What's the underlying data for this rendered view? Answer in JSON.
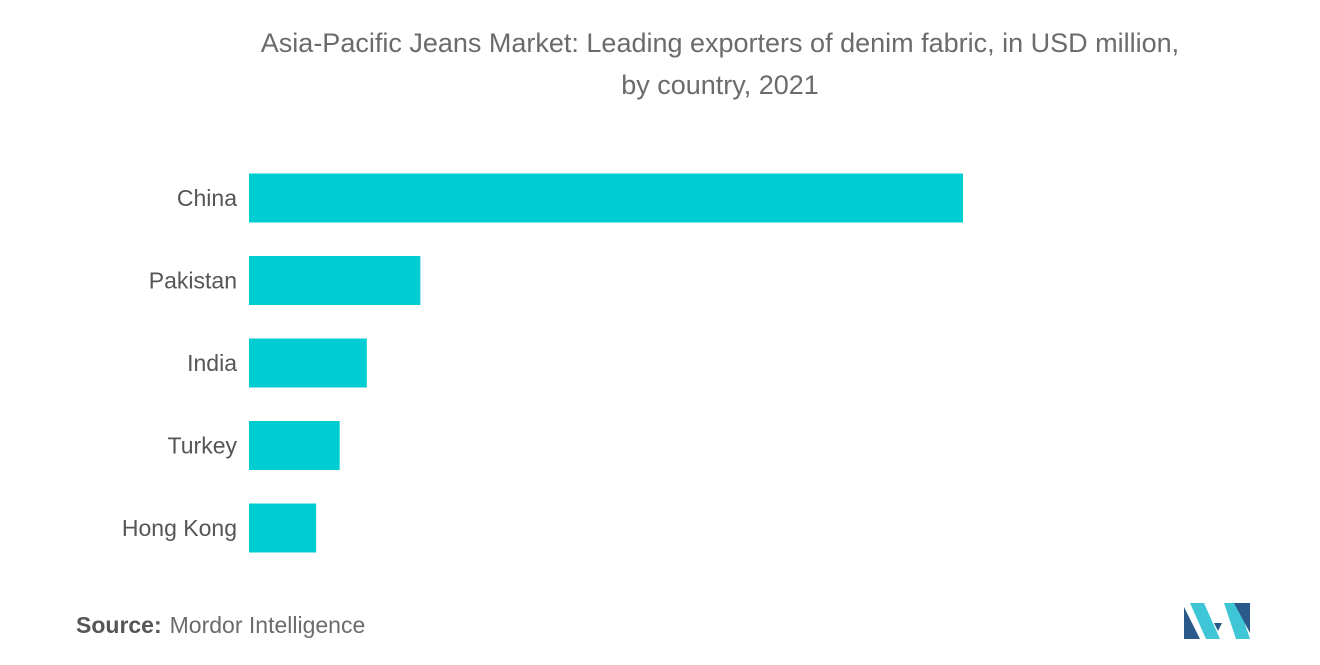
{
  "chart_data": {
    "type": "bar",
    "orientation": "horizontal",
    "title": "Asia-Pacific Jeans Market: Leading exporters of denim fabric, in USD million, by country, 2021",
    "categories": [
      "China",
      "Pakistan",
      "India",
      "Turkey",
      "Hong Kong"
    ],
    "values": [
      100,
      24,
      16.5,
      12.7,
      9.4
    ],
    "xlim": [
      0,
      100
    ],
    "grid": false,
    "legend": "none",
    "bar_color": "#00cdd1"
  },
  "source": {
    "label": "Source:",
    "text": "Mordor Intelligence"
  },
  "colors": {
    "bar": "#00cdd1",
    "text": "#6b6b6b",
    "logo_dark": "#2a5a8a",
    "logo_light": "#3ec6d6"
  }
}
